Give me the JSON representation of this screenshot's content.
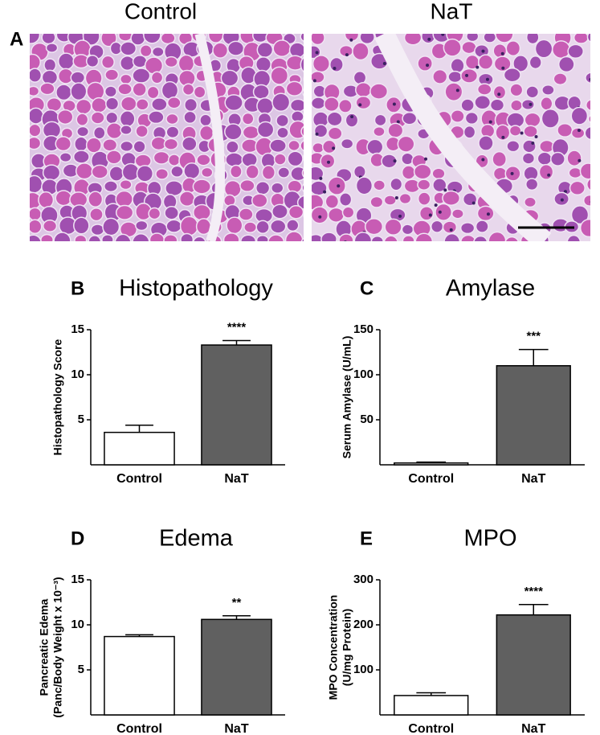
{
  "panel_a": {
    "label": "A",
    "images": [
      {
        "title": "Control"
      },
      {
        "title": "NaT"
      }
    ]
  },
  "chart_data": [
    {
      "type": "bar",
      "panel_label": "B",
      "title": "Histopathology",
      "ylabel": [
        "Histopathology Score"
      ],
      "categories": [
        "Control",
        "NaT"
      ],
      "values": [
        3.6,
        13.3
      ],
      "errors": [
        0.8,
        0.5
      ],
      "significance": [
        null,
        "****"
      ],
      "colors": [
        "#ffffff",
        "#606060"
      ],
      "ylim": [
        0,
        15
      ],
      "yticks": [
        5,
        10,
        15
      ]
    },
    {
      "type": "bar",
      "panel_label": "C",
      "title": "Amylase",
      "ylabel": [
        "Serum Amylase (U/mL)"
      ],
      "categories": [
        "Control",
        "NaT"
      ],
      "values": [
        2,
        110
      ],
      "errors": [
        1,
        18
      ],
      "significance": [
        null,
        "***"
      ],
      "colors": [
        "#ffffff",
        "#606060"
      ],
      "ylim": [
        0,
        150
      ],
      "yticks": [
        50,
        100,
        150
      ]
    },
    {
      "type": "bar",
      "panel_label": "D",
      "title": "Edema",
      "ylabel": [
        "Pancreatic Edema",
        "(Panc/Body Weight x 10⁻³)"
      ],
      "categories": [
        "Control",
        "NaT"
      ],
      "values": [
        8.7,
        10.6
      ],
      "errors": [
        0.2,
        0.4
      ],
      "significance": [
        null,
        "**"
      ],
      "colors": [
        "#ffffff",
        "#606060"
      ],
      "ylim": [
        0,
        15
      ],
      "yticks": [
        5,
        10,
        15
      ]
    },
    {
      "type": "bar",
      "panel_label": "E",
      "title": "MPO",
      "ylabel": [
        "MPO Concentration",
        "(U/mg Protein)"
      ],
      "categories": [
        "Control",
        "NaT"
      ],
      "values": [
        43,
        222
      ],
      "errors": [
        6,
        23
      ],
      "significance": [
        null,
        "****"
      ],
      "colors": [
        "#ffffff",
        "#606060"
      ],
      "ylim": [
        0,
        300
      ],
      "yticks": [
        100,
        200,
        300
      ]
    }
  ]
}
